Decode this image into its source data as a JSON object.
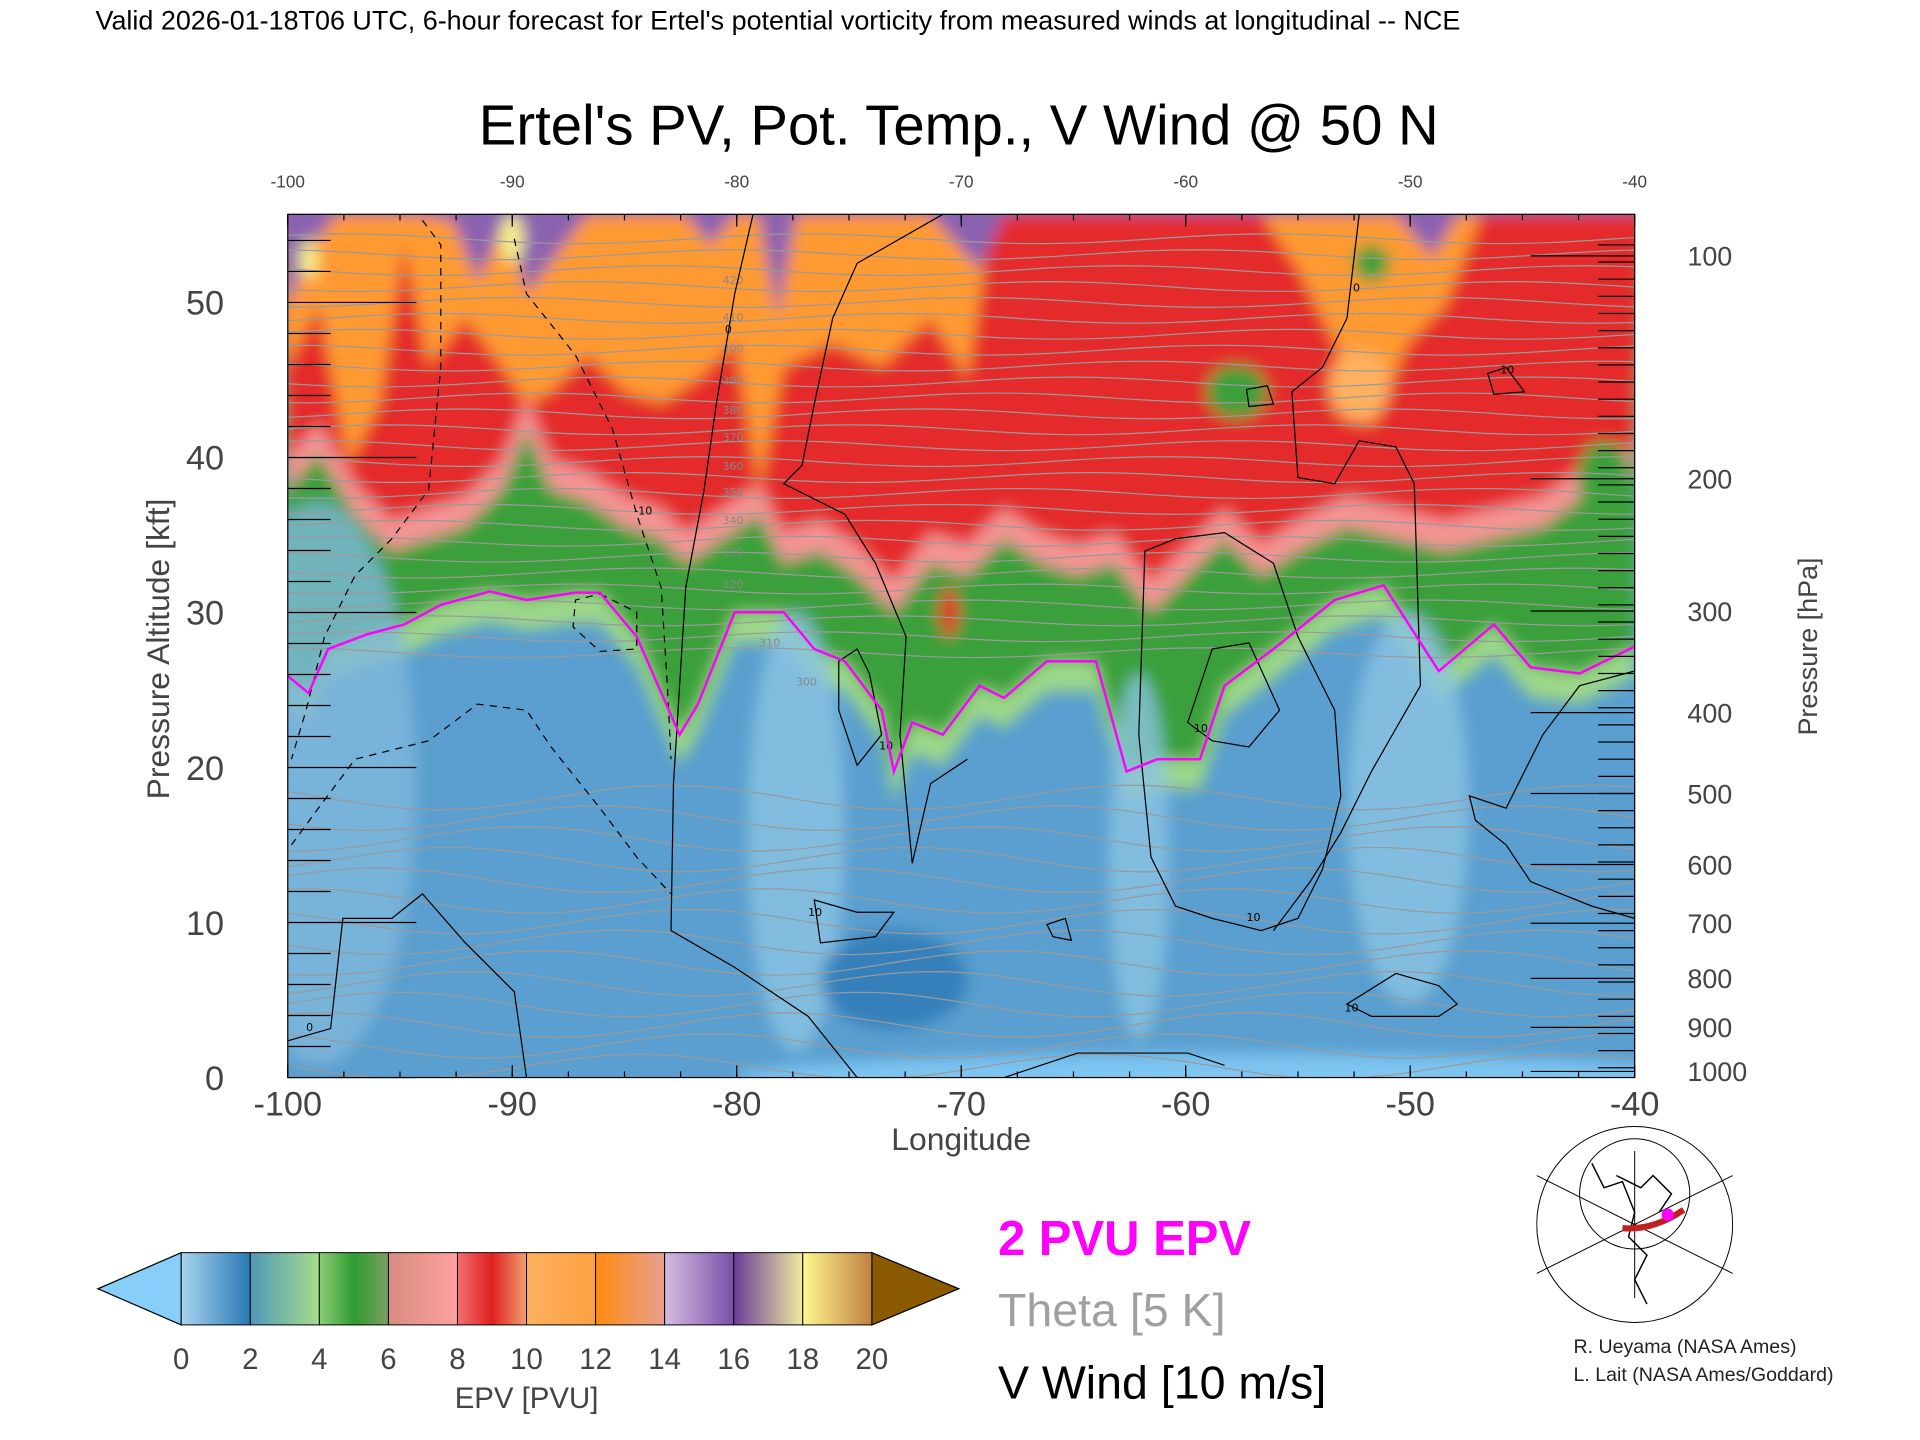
{
  "header": "Valid 2026-01-18T06 UTC, 6-hour forecast for Ertel's potential vorticity from measured winds at longitudinal -- NCE",
  "chart_data": {
    "type": "heatmap",
    "title": "Ertel's PV, Pot. Temp., V Wind @ 50 N",
    "xlabel": "Longitude",
    "ylabel": "Pressure Altitude [kft]",
    "y2label": "Pressure [hPa]",
    "xlim": [
      -100,
      -40
    ],
    "ylim": [
      0,
      56
    ],
    "x_ticks": [
      "-100",
      "-90",
      "-80",
      "-70",
      "-60",
      "-50",
      "-40"
    ],
    "x_tick_values": [
      -100,
      -90,
      -80,
      -70,
      -60,
      -50,
      -40
    ],
    "y_ticks": [
      "0",
      "10",
      "20",
      "30",
      "40",
      "50"
    ],
    "y_tick_values": [
      0,
      10,
      20,
      30,
      40,
      50
    ],
    "pressure_ticks": [
      "100",
      "200",
      "300",
      "400",
      "500",
      "600",
      "700",
      "800",
      "900",
      "1000"
    ],
    "theta_labels": [
      "420",
      "410",
      "400",
      "390",
      "380",
      "370",
      "360",
      "350",
      "340",
      "330",
      "320",
      "310",
      "300"
    ],
    "wind_labels": [
      "0",
      "10",
      "-10",
      "0",
      "10",
      "10",
      "0",
      "10",
      "-10",
      "10"
    ],
    "colorbar": {
      "label": "EPV [PVU]",
      "ticks": [
        "0",
        "2",
        "4",
        "6",
        "8",
        "10",
        "12",
        "14",
        "16",
        "18",
        "20"
      ],
      "range": [
        0,
        20
      ],
      "colors": [
        "#87cefa",
        "#2a78b5",
        "#a8dc8c",
        "#2f9c30",
        "#f89c9c",
        "#e02828",
        "#ffb060",
        "#ff8a10",
        "#c8b0d8",
        "#6a3c98",
        "#f6f08c",
        "#8b5a00"
      ]
    },
    "legend": {
      "epv": "2 PVU EPV",
      "theta": "Theta [5 K]",
      "wind": "V Wind [10 m/s]",
      "epv_color": "#ff00ff",
      "theta_color": "#a0a0a0",
      "wind_color": "#000000"
    }
  },
  "credits": [
    "R. Ueyama (NASA Ames)",
    "L. Lait (NASA Ames/Goddard)"
  ]
}
